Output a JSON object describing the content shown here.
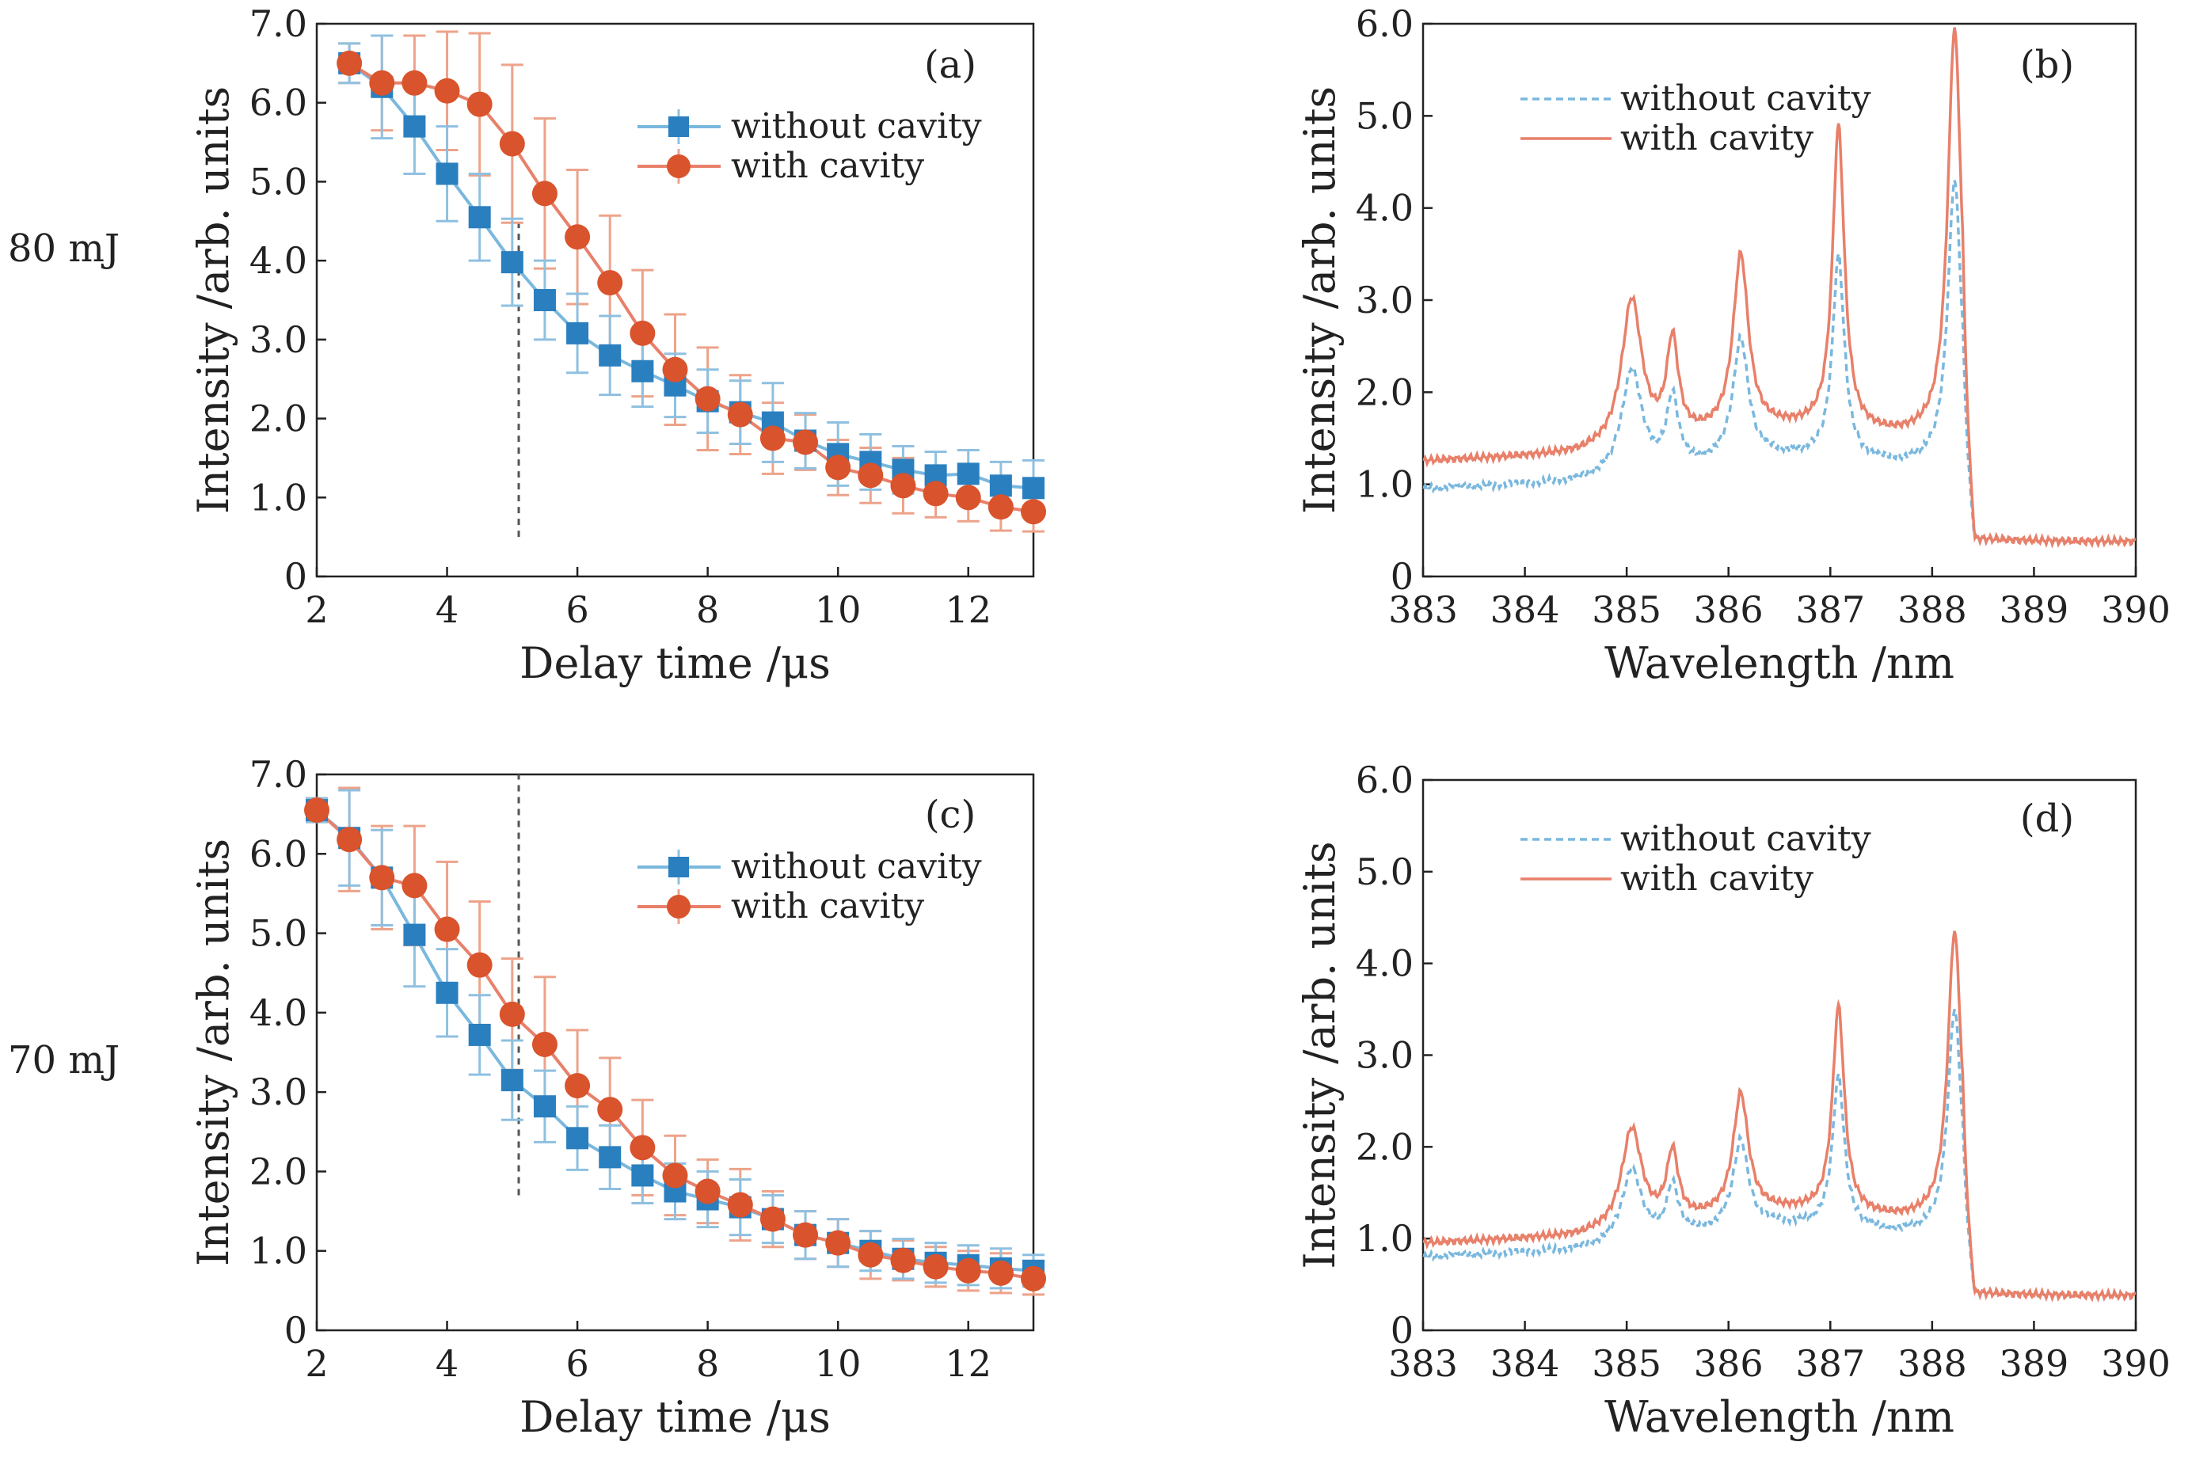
{
  "colors": {
    "without": "#2a7fbf",
    "without_err": "#8fc0e0",
    "without_line": "#7ab8de",
    "with": "#d9532c",
    "with_err": "#eda38a",
    "with_line": "#e8806a",
    "axis": "#222222",
    "vline": "#555555"
  },
  "row_labels": [
    "80 mJ",
    "70 mJ"
  ],
  "chart_data": [
    {
      "panel": "(a)",
      "type": "line",
      "xlabel": "Delay time /μs",
      "ylabel": "Intensity /arb. units",
      "xlim": [
        2,
        13
      ],
      "ylim": [
        0,
        7
      ],
      "xticks": [
        2,
        4,
        6,
        8,
        10,
        12
      ],
      "xtick_labels": [
        "2",
        "4",
        "6",
        "8",
        "10",
        "12"
      ],
      "yticks": [
        0,
        1,
        2,
        3,
        4,
        5,
        6,
        7
      ],
      "ytick_labels": [
        "0",
        "1.0",
        "2.0",
        "3.0",
        "4.0",
        "5.0",
        "6.0",
        "7.0"
      ],
      "vline_x": 5.1,
      "vline_range": [
        0.5,
        4.5
      ],
      "legend_position": "top-right",
      "x": [
        2.5,
        3.0,
        3.5,
        4.0,
        4.5,
        5.0,
        5.5,
        6.0,
        6.5,
        7.0,
        7.5,
        8.0,
        8.5,
        9.0,
        9.5,
        10.0,
        10.5,
        11.0,
        11.5,
        12.0,
        12.5,
        13.0
      ],
      "series": [
        {
          "name": "without cavity",
          "marker": "square",
          "values": [
            6.5,
            6.2,
            5.7,
            5.1,
            4.55,
            3.98,
            3.5,
            3.08,
            2.8,
            2.6,
            2.42,
            2.22,
            2.08,
            1.95,
            1.72,
            1.55,
            1.45,
            1.35,
            1.28,
            1.3,
            1.15,
            1.12
          ],
          "errors": [
            0.25,
            0.65,
            0.6,
            0.6,
            0.55,
            0.55,
            0.5,
            0.5,
            0.5,
            0.45,
            0.4,
            0.4,
            0.4,
            0.5,
            0.35,
            0.4,
            0.35,
            0.3,
            0.3,
            0.3,
            0.3,
            0.35
          ]
        },
        {
          "name": "with cavity",
          "marker": "circle",
          "values": [
            6.5,
            6.25,
            6.25,
            6.15,
            5.98,
            5.48,
            4.85,
            4.3,
            3.72,
            3.08,
            2.62,
            2.25,
            2.05,
            1.75,
            1.7,
            1.38,
            1.28,
            1.15,
            1.05,
            1.0,
            0.88,
            0.82
          ]
        }
      ],
      "with_errors": [
        0.25,
        0.6,
        0.6,
        0.75,
        0.9,
        1.0,
        0.95,
        0.85,
        0.85,
        0.8,
        0.7,
        0.65,
        0.5,
        0.45,
        0.35,
        0.35,
        0.35,
        0.35,
        0.3,
        0.3,
        0.3,
        0.25
      ]
    },
    {
      "panel": "(b)",
      "type": "line",
      "xlabel": "Wavelength /nm",
      "ylabel": "Intensity /arb. units",
      "xlim": [
        383,
        390
      ],
      "ylim": [
        0,
        6
      ],
      "xticks": [
        383,
        384,
        385,
        386,
        387,
        388,
        389,
        390
      ],
      "xtick_labels": [
        "383",
        "384",
        "385",
        "386",
        "387",
        "388",
        "389",
        "390"
      ],
      "yticks": [
        0,
        1,
        2,
        3,
        4,
        5,
        6
      ],
      "ytick_labels": [
        "0",
        "1.0",
        "2.0",
        "3.0",
        "4.0",
        "5.0",
        "6.0"
      ],
      "legend_position": "top-left",
      "series": [
        {
          "name": "without cavity",
          "style": "dashed",
          "base": 0.95,
          "peaks": [
            [
              385.05,
              1.15,
              0.12
            ],
            [
              385.45,
              0.75,
              0.07
            ],
            [
              386.12,
              1.3,
              0.09
            ],
            [
              387.08,
              2.2,
              0.07
            ],
            [
              388.22,
              3.1,
              0.08
            ]
          ]
        },
        {
          "name": "with cavity",
          "style": "solid",
          "base": 1.25,
          "peaks": [
            [
              385.05,
              1.6,
              0.12
            ],
            [
              385.45,
              1.05,
              0.07
            ],
            [
              386.12,
              1.9,
              0.09
            ],
            [
              387.08,
              3.3,
              0.07
            ],
            [
              388.22,
              4.45,
              0.08
            ]
          ]
        }
      ]
    },
    {
      "panel": "(c)",
      "type": "line",
      "xlabel": "Delay time /μs",
      "ylabel": "Intensity /arb. units",
      "xlim": [
        2,
        13
      ],
      "ylim": [
        0,
        7
      ],
      "xticks": [
        2,
        4,
        6,
        8,
        10,
        12
      ],
      "xtick_labels": [
        "2",
        "4",
        "6",
        "8",
        "10",
        "12"
      ],
      "yticks": [
        0,
        1,
        2,
        3,
        4,
        5,
        6,
        7
      ],
      "ytick_labels": [
        "0",
        "1.0",
        "2.0",
        "3.0",
        "4.0",
        "5.0",
        "6.0",
        "7.0"
      ],
      "vline_x": 5.1,
      "vline_range": [
        1.7,
        7.0
      ],
      "legend_position": "top-right",
      "x": [
        2.0,
        2.5,
        3.0,
        3.5,
        4.0,
        4.5,
        5.0,
        5.5,
        6.0,
        6.5,
        7.0,
        7.5,
        8.0,
        8.5,
        9.0,
        9.5,
        10.0,
        10.5,
        11.0,
        11.5,
        12.0,
        12.5,
        13.0
      ],
      "series": [
        {
          "name": "without cavity",
          "marker": "square",
          "values": [
            6.55,
            6.2,
            5.7,
            4.98,
            4.25,
            3.72,
            3.15,
            2.82,
            2.42,
            2.18,
            1.95,
            1.75,
            1.65,
            1.55,
            1.4,
            1.2,
            1.1,
            1.0,
            0.9,
            0.85,
            0.82,
            0.78,
            0.75
          ],
          "errors": [
            0.15,
            0.6,
            0.6,
            0.65,
            0.55,
            0.5,
            0.5,
            0.45,
            0.4,
            0.4,
            0.35,
            0.35,
            0.35,
            0.35,
            0.3,
            0.3,
            0.3,
            0.25,
            0.25,
            0.25,
            0.25,
            0.25,
            0.2
          ]
        },
        {
          "name": "with cavity",
          "marker": "circle",
          "values": [
            6.55,
            6.18,
            5.7,
            5.6,
            5.05,
            4.6,
            3.98,
            3.6,
            3.08,
            2.78,
            2.3,
            1.95,
            1.75,
            1.58,
            1.4,
            1.2,
            1.1,
            0.95,
            0.88,
            0.8,
            0.75,
            0.72,
            0.65
          ]
        }
      ],
      "with_errors": [
        0.15,
        0.65,
        0.65,
        0.75,
        0.85,
        0.8,
        0.7,
        0.85,
        0.7,
        0.65,
        0.6,
        0.5,
        0.4,
        0.45,
        0.35,
        0.3,
        0.3,
        0.3,
        0.25,
        0.25,
        0.25,
        0.25,
        0.2
      ]
    },
    {
      "panel": "(d)",
      "type": "line",
      "xlabel": "Wavelength /nm",
      "ylabel": "Intensity /arb. units",
      "xlim": [
        383,
        390
      ],
      "ylim": [
        0,
        6
      ],
      "xticks": [
        383,
        384,
        385,
        386,
        387,
        388,
        389,
        390
      ],
      "xtick_labels": [
        "383",
        "384",
        "385",
        "386",
        "387",
        "388",
        "389",
        "390"
      ],
      "yticks": [
        0,
        1,
        2,
        3,
        4,
        5,
        6
      ],
      "ytick_labels": [
        "0",
        "1.0",
        "2.0",
        "3.0",
        "4.0",
        "5.0",
        "6.0"
      ],
      "legend_position": "top-left",
      "series": [
        {
          "name": "without cavity",
          "style": "dashed",
          "base": 0.8,
          "peaks": [
            [
              385.05,
              0.8,
              0.12
            ],
            [
              385.45,
              0.55,
              0.07
            ],
            [
              386.12,
              0.95,
              0.09
            ],
            [
              387.08,
              1.65,
              0.07
            ],
            [
              388.22,
              2.45,
              0.08
            ]
          ]
        },
        {
          "name": "with cavity",
          "style": "solid",
          "base": 0.95,
          "peaks": [
            [
              385.05,
              1.1,
              0.12
            ],
            [
              385.45,
              0.75,
              0.07
            ],
            [
              386.12,
              1.3,
              0.09
            ],
            [
              387.08,
              2.25,
              0.07
            ],
            [
              388.22,
              3.15,
              0.08
            ]
          ]
        }
      ]
    }
  ]
}
